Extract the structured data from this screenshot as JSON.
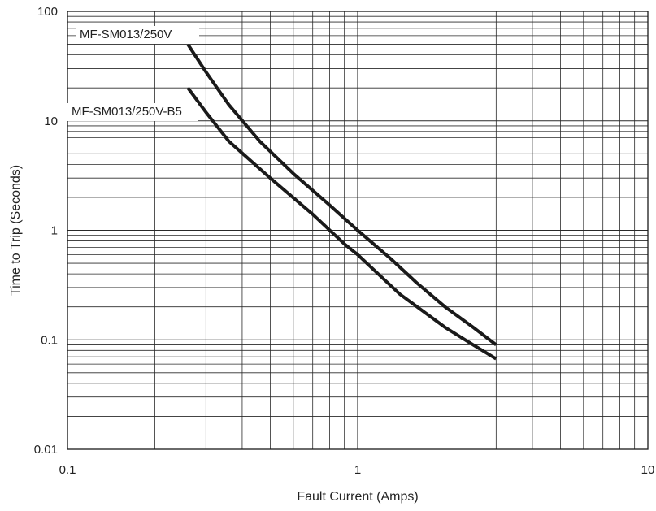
{
  "chart_data": {
    "type": "line",
    "xlabel": "Fault Current  (Amps)",
    "ylabel": "Time to Trip (Seconds)",
    "xscale": "log",
    "yscale": "log",
    "xlim": [
      0.1,
      10
    ],
    "ylim": [
      0.01,
      100
    ],
    "grid": true,
    "legend": "inline labels at curve starts (top-left)",
    "x_tick_labels": [
      "0.1",
      "1",
      "10"
    ],
    "y_tick_labels": [
      "0.01",
      "0.1",
      "1",
      "10",
      "100"
    ],
    "series": [
      {
        "name": "MF-SM013/250V",
        "points": [
          [
            0.26,
            50
          ],
          [
            0.3,
            28
          ],
          [
            0.36,
            14
          ],
          [
            0.46,
            6.5
          ],
          [
            0.6,
            3.3
          ],
          [
            0.8,
            1.7
          ],
          [
            1.0,
            1.0
          ],
          [
            1.3,
            0.55
          ],
          [
            1.6,
            0.33
          ],
          [
            2.0,
            0.2
          ],
          [
            2.5,
            0.13
          ],
          [
            3.0,
            0.09
          ]
        ]
      },
      {
        "name": "MF-SM013/250V-B5",
        "points": [
          [
            0.26,
            20
          ],
          [
            0.3,
            12
          ],
          [
            0.36,
            6.5
          ],
          [
            0.5,
            3.0
          ],
          [
            0.7,
            1.4
          ],
          [
            0.9,
            0.75
          ],
          [
            1.0,
            0.6
          ],
          [
            1.2,
            0.38
          ],
          [
            1.4,
            0.26
          ],
          [
            2.0,
            0.13
          ],
          [
            2.5,
            0.09
          ],
          [
            3.0,
            0.067
          ]
        ]
      }
    ],
    "colors": {
      "line": "#1a1a1a",
      "grid": "#2a2a2a",
      "background": "#ffffff"
    }
  }
}
